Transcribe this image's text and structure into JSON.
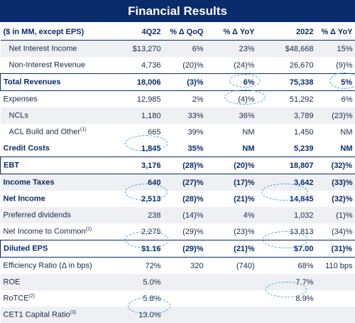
{
  "title": "Financial Results",
  "header": [
    "($ in MM, except EPS)",
    "4Q22",
    "% Δ QoQ",
    "% Δ YoY",
    "2022",
    "% Δ YoY"
  ],
  "rows": [
    {
      "label": "Net Interest Income",
      "sup": "",
      "v": [
        "$13,270",
        "6%",
        "23%",
        "$48,668",
        "15%"
      ]
    },
    {
      "label": "Non-Interest Revenue",
      "sup": "",
      "v": [
        "4,736",
        "(20)%",
        "(24)%",
        "26,670",
        "(9)%"
      ]
    },
    {
      "label": "Total Revenues",
      "sup": "",
      "v": [
        "18,006",
        "(3)%",
        "6%",
        "75,338",
        "5%"
      ]
    },
    {
      "label": "Expenses",
      "sup": "",
      "v": [
        "12,985",
        "2%",
        "(4)%",
        "51,292",
        "6%"
      ]
    },
    {
      "label": "NCLs",
      "sup": "",
      "v": [
        "1,180",
        "33%",
        "36%",
        "3,789",
        "(23)%"
      ]
    },
    {
      "label": "ACL Build and Other",
      "sup": "(1)",
      "v": [
        "665",
        "39%",
        "NM",
        "1,450",
        "NM"
      ]
    },
    {
      "label": "Credit Costs",
      "sup": "",
      "v": [
        "1,845",
        "35%",
        "NM",
        "5,239",
        "NM"
      ]
    },
    {
      "label": "EBT",
      "sup": "",
      "v": [
        "3,176",
        "(28)%",
        "(20)%",
        "18,807",
        "(32)%"
      ]
    },
    {
      "label": "Income Taxes",
      "sup": "",
      "v": [
        "640",
        "(27)%",
        "(17)%",
        "3,642",
        "(33)%"
      ]
    },
    {
      "label": "Net Income",
      "sup": "",
      "v": [
        "2,513",
        "(28)%",
        "(21)%",
        "14,845",
        "(32)%"
      ]
    },
    {
      "label": "Preferred dividends",
      "sup": "",
      "v": [
        "238",
        "(14)%",
        "4%",
        "1,032",
        "(1)%"
      ]
    },
    {
      "label": "Net Income to Common",
      "sup": "(2)",
      "v": [
        "2,275",
        "(29)%",
        "(23)%",
        "13,813",
        "(34)%"
      ]
    },
    {
      "label": "Diluted EPS",
      "sup": "",
      "v": [
        "$1.16",
        "(29)%",
        "(21)%",
        "$7.00",
        "(31)%"
      ]
    },
    {
      "label": "Efficiency Ratio (Δ in bps)",
      "sup": "",
      "v": [
        "72%",
        "320",
        "(740)",
        "68%",
        "110 bps"
      ]
    },
    {
      "label": "ROE",
      "sup": "",
      "v": [
        "5.0%",
        "",
        "",
        "7.7%",
        ""
      ]
    },
    {
      "label": "RoTCE",
      "sup": "(2)",
      "v": [
        "5.8%",
        "",
        "",
        "8.9%",
        ""
      ]
    },
    {
      "label": "CET1 Capital Ratio",
      "sup": "(3)",
      "v": [
        "13.0%",
        "",
        "",
        "",
        ""
      ]
    }
  ],
  "colors": {
    "header_bg": "#0a2b6b",
    "highlight_circle": "#3fa6d8",
    "row_shade": "#eef0f4"
  }
}
